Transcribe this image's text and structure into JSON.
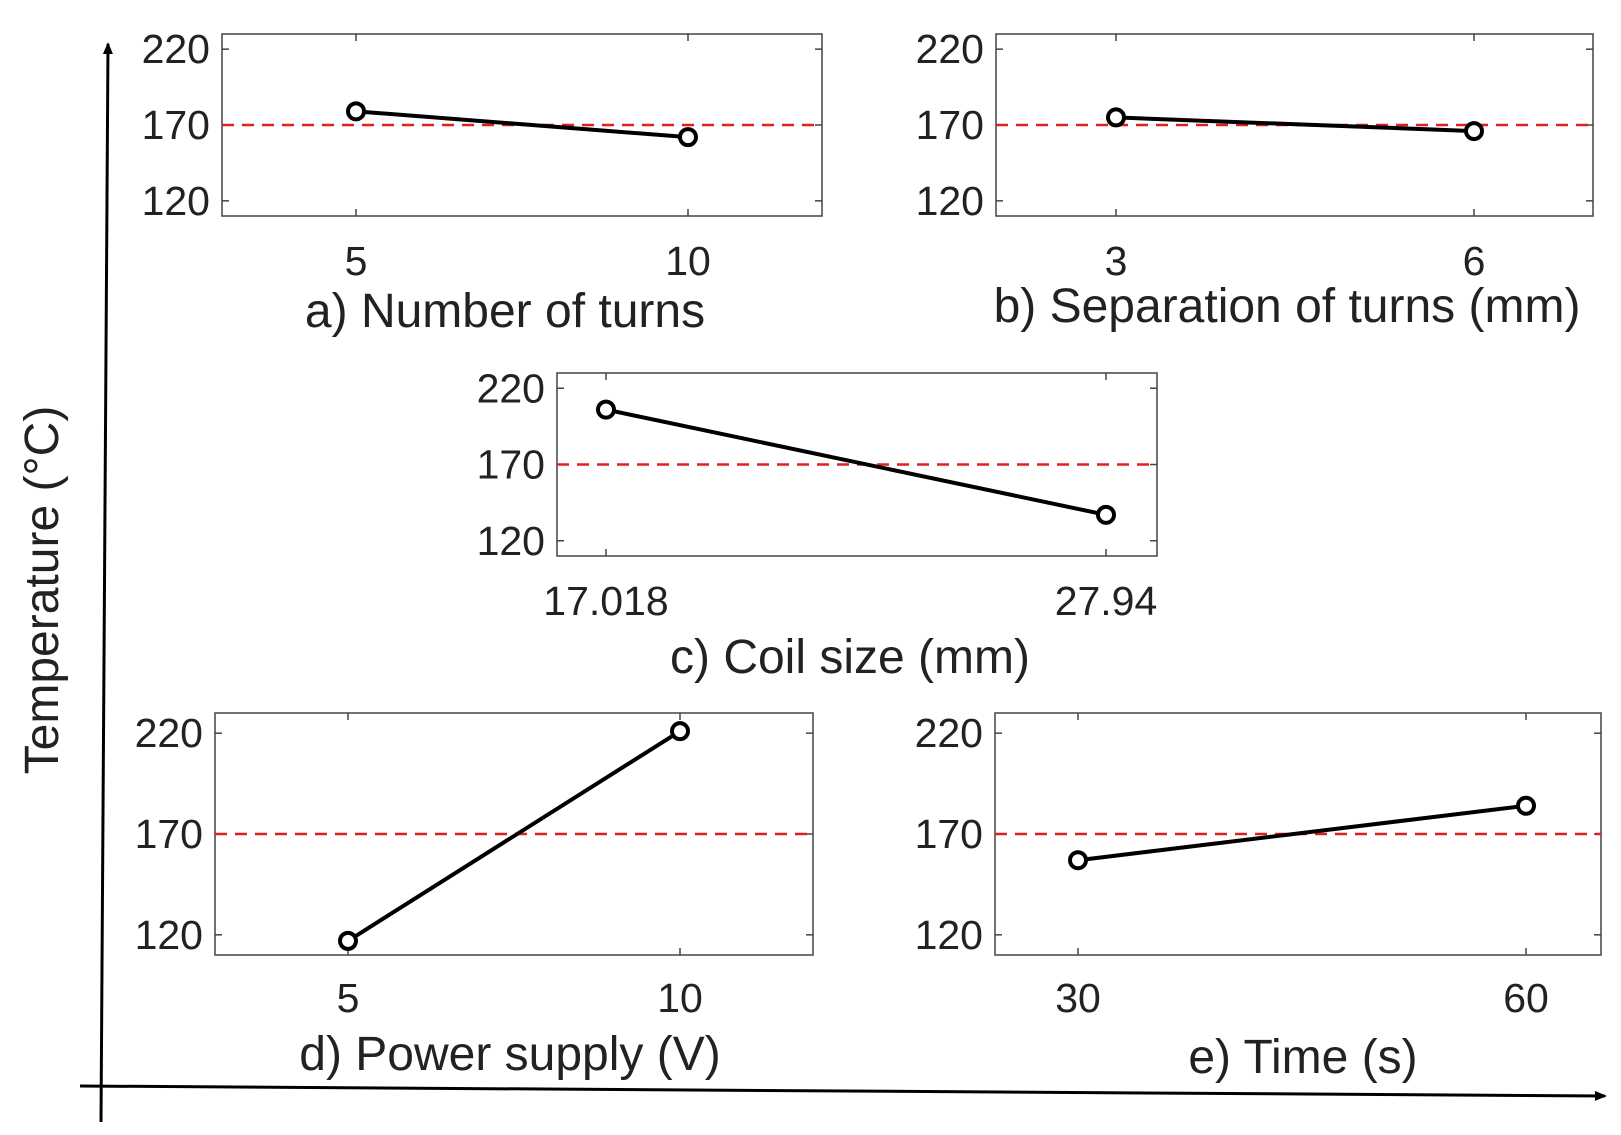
{
  "figure": {
    "ylabel": "Temperature (°C)",
    "reference_line": {
      "value": 170,
      "color": "#e02020",
      "style": "dashed"
    },
    "line_color": "#000000"
  },
  "chart_data": [
    {
      "id": "a",
      "type": "line",
      "xlabel": "a) Number of turns",
      "x_ticks": [
        "5",
        "10"
      ],
      "y_ticks": [
        "220",
        "170",
        "120"
      ],
      "ylim": [
        110,
        230
      ],
      "values": [
        179,
        162
      ]
    },
    {
      "id": "b",
      "type": "line",
      "xlabel": "b) Separation of turns (mm)",
      "x_ticks": [
        "3",
        "6"
      ],
      "y_ticks": [
        "220",
        "170",
        "120"
      ],
      "ylim": [
        110,
        230
      ],
      "values": [
        175,
        166
      ]
    },
    {
      "id": "c",
      "type": "line",
      "xlabel": "c) Coil size (mm)",
      "x_ticks": [
        "17.018",
        "27.94"
      ],
      "y_ticks": [
        "220",
        "170",
        "120"
      ],
      "ylim": [
        110,
        230
      ],
      "values": [
        206,
        137
      ]
    },
    {
      "id": "d",
      "type": "line",
      "xlabel": "d) Power supply (V)",
      "x_ticks": [
        "5",
        "10"
      ],
      "y_ticks": [
        "220",
        "170",
        "120"
      ],
      "ylim": [
        110,
        230
      ],
      "values": [
        117,
        221
      ]
    },
    {
      "id": "e",
      "type": "line",
      "xlabel": "e) Time (s)",
      "x_ticks": [
        "30",
        "60"
      ],
      "y_ticks": [
        "220",
        "170",
        "120"
      ],
      "ylim": [
        110,
        230
      ],
      "values": [
        157,
        184
      ]
    }
  ]
}
